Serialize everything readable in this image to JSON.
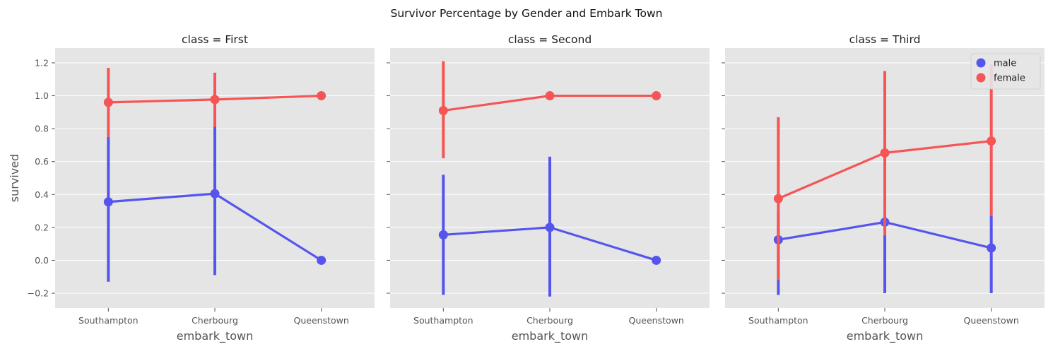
{
  "chart_data": {
    "type": "point",
    "suptitle": "Survivor Percentage by Gender and Embark Town",
    "xlabel": "embark_town",
    "ylabel": "survived",
    "ylim": [
      -0.29,
      1.29
    ],
    "yticks": [
      -0.2,
      0.0,
      0.2,
      0.4,
      0.6,
      0.8,
      1.0,
      1.2
    ],
    "ytick_labels": [
      "−0.2",
      "0.0",
      "0.2",
      "0.4",
      "0.6",
      "0.8",
      "1.0",
      "1.2"
    ],
    "categories": [
      "Southampton",
      "Cherbourg",
      "Queenstown"
    ],
    "grid": true,
    "legend": {
      "placement": "top-right",
      "panel": 2,
      "entries": [
        "male",
        "female"
      ]
    },
    "colors": {
      "male": "#5555ee",
      "female": "#f55555",
      "panel_bg": "#e5e5e5",
      "grid": "#ffffff"
    },
    "panels": [
      {
        "title": "class = First",
        "series": [
          {
            "name": "male",
            "values": [
              0.355,
              0.405,
              0.0
            ],
            "ci": [
              [
                -0.13,
                0.75
              ],
              [
                -0.09,
                0.82
              ],
              [
                0.0,
                0.0
              ]
            ]
          },
          {
            "name": "female",
            "values": [
              0.96,
              0.977,
              1.0
            ],
            "ci": [
              [
                0.75,
                1.17
              ],
              [
                0.81,
                1.14
              ],
              [
                1.0,
                1.0
              ]
            ]
          }
        ]
      },
      {
        "title": "class = Second",
        "series": [
          {
            "name": "male",
            "values": [
              0.155,
              0.2,
              0.0
            ],
            "ci": [
              [
                -0.21,
                0.52
              ],
              [
                -0.22,
                0.63
              ],
              [
                0.0,
                0.0
              ]
            ]
          },
          {
            "name": "female",
            "values": [
              0.91,
              1.0,
              1.0
            ],
            "ci": [
              [
                0.62,
                1.21
              ],
              [
                1.0,
                1.0
              ],
              [
                1.0,
                1.0
              ]
            ]
          }
        ]
      },
      {
        "title": "class = Third",
        "series": [
          {
            "name": "male",
            "values": [
              0.125,
              0.232,
              0.075
            ],
            "ci": [
              [
                -0.21,
                0.3
              ],
              [
                -0.2,
                0.67
              ],
              [
                -0.2,
                0.27
              ]
            ]
          },
          {
            "name": "female",
            "values": [
              0.375,
              0.653,
              0.725
            ],
            "ci": [
              [
                -0.12,
                0.87
              ],
              [
                0.15,
                1.15
              ],
              [
                0.27,
                1.19
              ]
            ]
          }
        ]
      }
    ]
  }
}
